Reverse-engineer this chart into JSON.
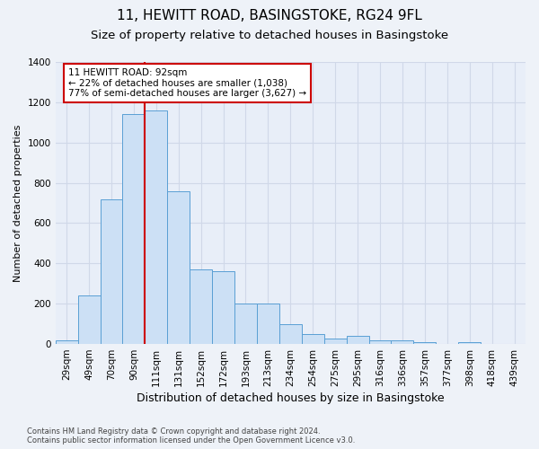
{
  "title1": "11, HEWITT ROAD, BASINGSTOKE, RG24 9FL",
  "title2": "Size of property relative to detached houses in Basingstoke",
  "xlabel": "Distribution of detached houses by size in Basingstoke",
  "ylabel": "Number of detached properties",
  "footnote": "Contains HM Land Registry data © Crown copyright and database right 2024.\nContains public sector information licensed under the Open Government Licence v3.0.",
  "bins": [
    "29sqm",
    "49sqm",
    "70sqm",
    "90sqm",
    "111sqm",
    "131sqm",
    "152sqm",
    "172sqm",
    "193sqm",
    "213sqm",
    "234sqm",
    "254sqm",
    "275sqm",
    "295sqm",
    "316sqm",
    "336sqm",
    "357sqm",
    "377sqm",
    "398sqm",
    "418sqm",
    "439sqm"
  ],
  "values": [
    20,
    240,
    720,
    1140,
    1160,
    760,
    370,
    360,
    200,
    200,
    100,
    50,
    25,
    40,
    20,
    20,
    8,
    0,
    8,
    0,
    0
  ],
  "bar_color": "#cce0f5",
  "bar_edge_color": "#5a9fd4",
  "vline_color": "#cc0000",
  "vline_x_idx": 3,
  "annotation_text": "11 HEWITT ROAD: 92sqm\n← 22% of detached houses are smaller (1,038)\n77% of semi-detached houses are larger (3,627) →",
  "annotation_box_color": "#ffffff",
  "annotation_box_edge_color": "#cc0000",
  "ylim": [
    0,
    1400
  ],
  "yticks": [
    0,
    200,
    400,
    600,
    800,
    1000,
    1200,
    1400
  ],
  "background_color": "#eef2f8",
  "plot_background": "#e8eef8",
  "grid_color": "#d0d8e8",
  "title1_fontsize": 11,
  "title2_fontsize": 9.5,
  "xlabel_fontsize": 9,
  "ylabel_fontsize": 8,
  "tick_fontsize": 7.5,
  "annotation_fontsize": 7.5,
  "footnote_fontsize": 6
}
